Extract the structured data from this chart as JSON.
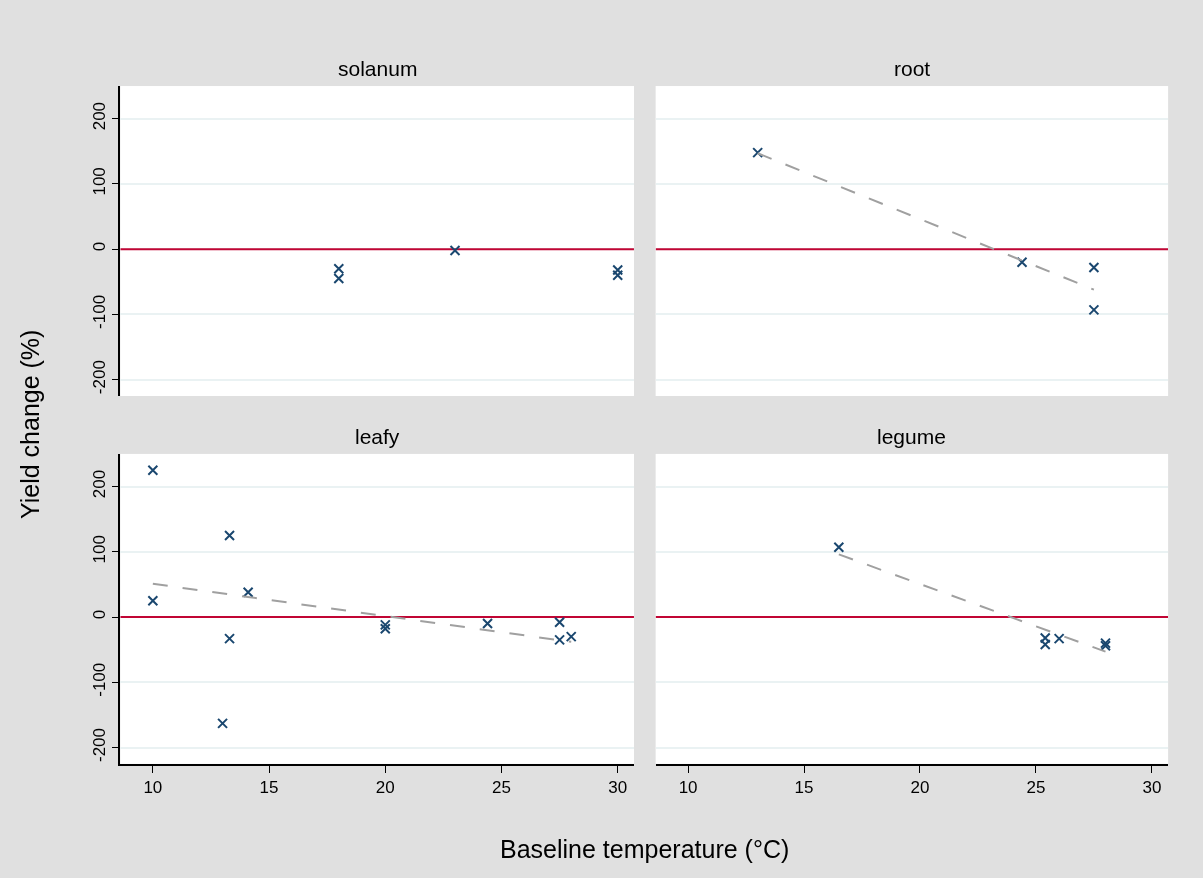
{
  "chart_data": [
    {
      "type": "scatter",
      "title": "solanum",
      "ylabel": "Yield change (%)",
      "xlim": [
        8.6,
        30.7
      ],
      "ylim": [
        -225,
        250
      ],
      "xticks": [
        10,
        15,
        20,
        25,
        30
      ],
      "yticks": [
        -200,
        -100,
        0,
        100,
        200
      ],
      "tick_labels": "y",
      "grid": "y",
      "ref_lines": [
        {
          "axis": "y",
          "value": 0,
          "color": "#c10534"
        }
      ],
      "series": [
        {
          "color": "#1a476f",
          "marker": "cross",
          "x": [
            18,
            18,
            23,
            30,
            30
          ],
          "values": [
            -30,
            -45,
            -2,
            -32,
            -40
          ]
        }
      ]
    },
    {
      "type": "scatter",
      "title": "root",
      "xlim": [
        8.6,
        30.7
      ],
      "ylim": [
        -225,
        250
      ],
      "xticks": [
        10,
        15,
        20,
        25,
        30
      ],
      "yticks": [
        -200,
        -100,
        0,
        100,
        200
      ],
      "tick_labels": false,
      "grid": "y",
      "ref_lines": [
        {
          "axis": "y",
          "value": 0,
          "color": "#c10534"
        }
      ],
      "series": [
        {
          "color": "#1a476f",
          "marker": "cross",
          "x": [
            13,
            24.4,
            27.5,
            27.5
          ],
          "values": [
            148,
            -20,
            -28,
            -93
          ]
        },
        {
          "type": "line",
          "line_style": "dashed",
          "color": "#a0a0a0",
          "x": [
            13,
            27.5
          ],
          "values": [
            147,
            -62
          ]
        }
      ]
    },
    {
      "type": "scatter",
      "title": "leafy",
      "xlabel": "Baseline temperature (°C)",
      "xlim": [
        8.6,
        30.7
      ],
      "ylim": [
        -225,
        250
      ],
      "xticks": [
        10,
        15,
        20,
        25,
        30
      ],
      "yticks": [
        -200,
        -100,
        0,
        100,
        200
      ],
      "grid": "y",
      "ref_lines": [
        {
          "axis": "y",
          "value": 0,
          "color": "#c10534"
        }
      ],
      "series": [
        {
          "color": "#1a476f",
          "marker": "cross",
          "x": [
            10,
            10,
            13.3,
            13.3,
            13,
            14.1,
            20,
            20,
            24.4,
            27.5,
            27.5,
            28
          ],
          "values": [
            225,
            25,
            125,
            -33,
            -163,
            38,
            -12,
            -18,
            -10,
            -8,
            -35,
            -30
          ]
        },
        {
          "type": "line",
          "line_style": "dashed",
          "color": "#a0a0a0",
          "x": [
            10,
            28
          ],
          "values": [
            51,
            -38
          ]
        }
      ]
    },
    {
      "type": "scatter",
      "title": "legume",
      "xlim": [
        8.6,
        30.7
      ],
      "ylim": [
        -225,
        250
      ],
      "xticks": [
        10,
        15,
        20,
        25,
        30
      ],
      "yticks": [
        -200,
        -100,
        0,
        100,
        200
      ],
      "tick_labels": "x",
      "grid": "y",
      "ref_lines": [
        {
          "axis": "y",
          "value": 0,
          "color": "#c10534"
        }
      ],
      "series": [
        {
          "color": "#1a476f",
          "marker": "cross",
          "x": [
            16.5,
            25.4,
            25.4,
            26,
            28,
            28
          ],
          "values": [
            107,
            -32,
            -42,
            -33,
            -40,
            -44
          ]
        },
        {
          "type": "line",
          "line_style": "dashed",
          "color": "#a0a0a0",
          "x": [
            16.5,
            28
          ],
          "values": [
            96,
            -53
          ]
        }
      ]
    }
  ]
}
